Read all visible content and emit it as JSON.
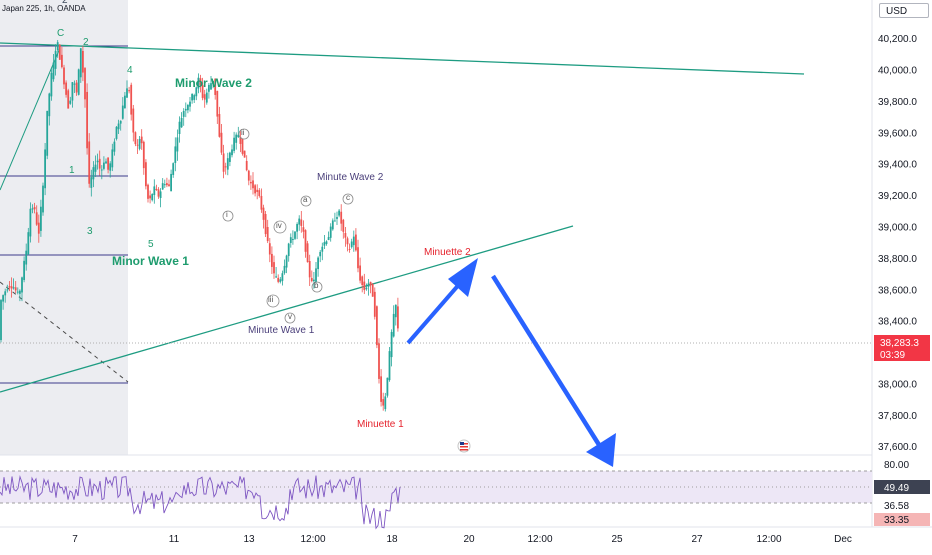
{
  "symbol_label": "Japan 225, 1h, OANDA",
  "currency": "USD",
  "chart_data": {
    "type": "candlestick",
    "price_axis": {
      "ticks": [
        "40,200.0",
        "40,000.0",
        "39,800.0",
        "39,600.0",
        "39,400.0",
        "39,200.0",
        "39,000.0",
        "38,800.0",
        "38,600.0",
        "38,400.0",
        "38,000.0",
        "37,800.0",
        "37,600.0"
      ],
      "tick_values": [
        40200,
        40000,
        39800,
        39600,
        39400,
        39200,
        39000,
        38800,
        38600,
        38400,
        38000,
        37800,
        37600
      ],
      "range": [
        37550,
        40450
      ]
    },
    "last_price": {
      "value": 38283.3,
      "label": "38,283.3",
      "countdown": "03:39",
      "color": "#f23645"
    },
    "time_axis": [
      "7",
      "11",
      "13",
      "12:00",
      "18",
      "20",
      "12:00",
      "25",
      "27",
      "12:00",
      "Dec"
    ],
    "price_path": [
      [
        0,
        38500
      ],
      [
        5,
        38580
      ],
      [
        10,
        38640
      ],
      [
        15,
        38620
      ],
      [
        20,
        38560
      ],
      [
        28,
        38880
      ],
      [
        32,
        39150
      ],
      [
        36,
        39100
      ],
      [
        40,
        38950
      ],
      [
        45,
        39350
      ],
      [
        48,
        39700
      ],
      [
        52,
        39950
      ],
      [
        55,
        40050
      ],
      [
        58,
        40200
      ],
      [
        62,
        40050
      ],
      [
        66,
        39900
      ],
      [
        70,
        39750
      ],
      [
        74,
        39950
      ],
      [
        78,
        39850
      ],
      [
        82,
        40150
      ],
      [
        86,
        39850
      ],
      [
        90,
        39250
      ],
      [
        94,
        39350
      ],
      [
        98,
        39450
      ],
      [
        102,
        39350
      ],
      [
        106,
        39450
      ],
      [
        110,
        39350
      ],
      [
        114,
        39500
      ],
      [
        118,
        39650
      ],
      [
        122,
        39700
      ],
      [
        126,
        39850
      ],
      [
        130,
        39900
      ],
      [
        134,
        39600
      ],
      [
        138,
        39500
      ],
      [
        142,
        39600
      ],
      [
        146,
        39300
      ],
      [
        150,
        39150
      ],
      [
        155,
        39250
      ],
      [
        160,
        39200
      ],
      [
        165,
        39300
      ],
      [
        170,
        39250
      ],
      [
        175,
        39450
      ],
      [
        180,
        39650
      ],
      [
        185,
        39750
      ],
      [
        190,
        39800
      ],
      [
        195,
        39850
      ],
      [
        200,
        39950
      ],
      [
        205,
        39800
      ],
      [
        210,
        39900
      ],
      [
        215,
        39950
      ],
      [
        220,
        39600
      ],
      [
        225,
        39350
      ],
      [
        230,
        39450
      ],
      [
        235,
        39550
      ],
      [
        240,
        39600
      ],
      [
        245,
        39450
      ],
      [
        250,
        39300
      ],
      [
        255,
        39250
      ],
      [
        260,
        39200
      ],
      [
        265,
        39050
      ],
      [
        270,
        38850
      ],
      [
        275,
        38700
      ],
      [
        280,
        38650
      ],
      [
        285,
        38750
      ],
      [
        290,
        38900
      ],
      [
        295,
        38950
      ],
      [
        300,
        39050
      ],
      [
        305,
        38950
      ],
      [
        310,
        38700
      ],
      [
        315,
        38650
      ],
      [
        320,
        38850
      ],
      [
        325,
        38900
      ],
      [
        330,
        38950
      ],
      [
        335,
        39050
      ],
      [
        340,
        39100
      ],
      [
        345,
        38950
      ],
      [
        350,
        38850
      ],
      [
        355,
        38950
      ],
      [
        360,
        38700
      ],
      [
        365,
        38600
      ],
      [
        370,
        38650
      ],
      [
        375,
        38550
      ],
      [
        378,
        38250
      ],
      [
        381,
        37950
      ],
      [
        384,
        37850
      ],
      [
        387,
        37950
      ],
      [
        390,
        38150
      ],
      [
        394,
        38400
      ],
      [
        397,
        38500
      ],
      [
        400,
        38283
      ]
    ],
    "rsi": {
      "levels": [
        "80.00",
        "36.58"
      ],
      "current": "49.49",
      "low_label": "33.35",
      "range": [
        20,
        90
      ]
    }
  },
  "annotations": {
    "wave_c": "C",
    "wave_2_top": "2",
    "wave_2": "2",
    "wave_1": "1",
    "wave_3": "3",
    "wave_4": "4",
    "wave_5": "5",
    "minor_wave_2": "Minor Wave 2",
    "minor_wave_1": "Minor Wave 1",
    "roman_i": "i",
    "roman_ii": "ii",
    "roman_iii": "iii",
    "roman_iv": "iv",
    "roman_v": "v",
    "minute_wave_1": "Minute Wave 1",
    "minute_wave_2": "Minute Wave 2",
    "letter_a": "a",
    "letter_b": "b",
    "letter_c": "c",
    "minuette_1": "Minuette 1",
    "minuette_2": "Minuette 2"
  },
  "colors": {
    "up": "#26a69a",
    "down": "#ef5350",
    "trendline": "#1e9c82",
    "arrow": "#2962ff",
    "wave_label_green": "#1e9c6e",
    "minute_label": "#5b4b8a",
    "minuette_label": "#e5232d",
    "rsi_line": "#7e57c2"
  }
}
